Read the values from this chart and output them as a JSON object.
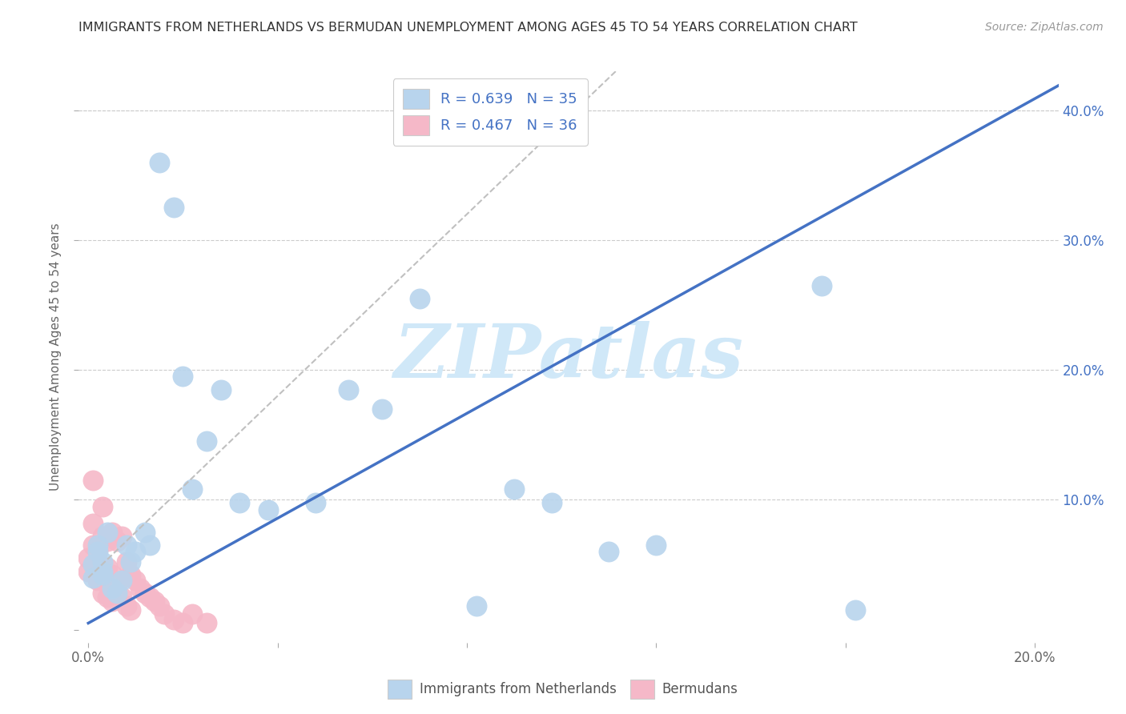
{
  "title": "IMMIGRANTS FROM NETHERLANDS VS BERMUDAN UNEMPLOYMENT AMONG AGES 45 TO 54 YEARS CORRELATION CHART",
  "source": "Source: ZipAtlas.com",
  "ylabel": "Unemployment Among Ages 45 to 54 years",
  "xlim": [
    -0.002,
    0.205
  ],
  "ylim": [
    -0.01,
    0.43
  ],
  "xticks": [
    0.0,
    0.04,
    0.08,
    0.12,
    0.16,
    0.2
  ],
  "xtick_labels": [
    "0.0%",
    "",
    "",
    "",
    "",
    "20.0%"
  ],
  "yticks": [
    0.0,
    0.1,
    0.2,
    0.3,
    0.4
  ],
  "ytick_labels_left": [
    "",
    "",
    "",
    "",
    ""
  ],
  "ytick_labels_right": [
    "",
    "10.0%",
    "20.0%",
    "30.0%",
    "40.0%"
  ],
  "blue_R": 0.639,
  "blue_N": 35,
  "pink_R": 0.467,
  "pink_N": 36,
  "blue_scatter_color": "#b8d4ed",
  "pink_scatter_color": "#f5b8c8",
  "blue_line_color": "#4472c4",
  "gray_line_color": "#c0c0c0",
  "legend_blue_face": "#b8d4ed",
  "legend_pink_face": "#f5b8c8",
  "legend_blue_label": "R = 0.639   N = 35",
  "legend_pink_label": "R = 0.467   N = 36",
  "legend_text_color": "#4472c4",
  "watermark": "ZIPatlas",
  "watermark_color": "#d0e8f8",
  "footer_blue": "Immigrants from Netherlands",
  "footer_pink": "Bermudans",
  "right_axis_color": "#4472c4",
  "blue_line_slope": 2.02,
  "blue_line_intercept": 0.005,
  "gray_line_slope": 3.5,
  "gray_line_intercept": 0.04,
  "blue_x": [
    0.001,
    0.001,
    0.002,
    0.002,
    0.003,
    0.003,
    0.003,
    0.004,
    0.005,
    0.006,
    0.007,
    0.008,
    0.009,
    0.01,
    0.012,
    0.013,
    0.015,
    0.018,
    0.02,
    0.022,
    0.025,
    0.028,
    0.032,
    0.038,
    0.048,
    0.055,
    0.062,
    0.07,
    0.082,
    0.09,
    0.098,
    0.11,
    0.12,
    0.155,
    0.162
  ],
  "blue_y": [
    0.05,
    0.04,
    0.06,
    0.065,
    0.052,
    0.045,
    0.042,
    0.075,
    0.032,
    0.028,
    0.038,
    0.065,
    0.052,
    0.06,
    0.075,
    0.065,
    0.36,
    0.325,
    0.195,
    0.108,
    0.145,
    0.185,
    0.098,
    0.092,
    0.098,
    0.185,
    0.17,
    0.255,
    0.018,
    0.108,
    0.098,
    0.06,
    0.065,
    0.265,
    0.015
  ],
  "pink_x": [
    0.0,
    0.0,
    0.001,
    0.001,
    0.001,
    0.002,
    0.002,
    0.002,
    0.003,
    0.003,
    0.003,
    0.004,
    0.004,
    0.004,
    0.005,
    0.005,
    0.005,
    0.006,
    0.006,
    0.007,
    0.007,
    0.008,
    0.008,
    0.009,
    0.009,
    0.01,
    0.011,
    0.012,
    0.013,
    0.014,
    0.015,
    0.016,
    0.018,
    0.02,
    0.022,
    0.025
  ],
  "pink_y": [
    0.055,
    0.045,
    0.115,
    0.082,
    0.065,
    0.062,
    0.052,
    0.038,
    0.095,
    0.072,
    0.028,
    0.068,
    0.048,
    0.025,
    0.075,
    0.042,
    0.022,
    0.068,
    0.035,
    0.072,
    0.025,
    0.052,
    0.018,
    0.042,
    0.015,
    0.038,
    0.032,
    0.028,
    0.025,
    0.022,
    0.018,
    0.012,
    0.008,
    0.005,
    0.012,
    0.005
  ]
}
